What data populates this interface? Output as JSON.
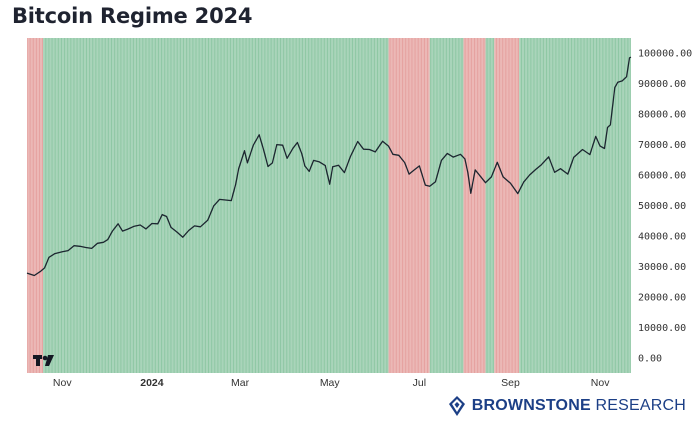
{
  "title": "Bitcoin Regime 2024",
  "brand": {
    "name_bold": "BROWNSTONE",
    "name_light": "RESEARCH",
    "logo_text": "TV"
  },
  "colors": {
    "bullish": "#8ec7a4",
    "bearish": "#e5a19f",
    "price_line": "#1c2630",
    "brand": "#1c3f86"
  },
  "chart_data": {
    "type": "line",
    "title": "Bitcoin Regime 2024",
    "xlabel": "",
    "ylabel": "",
    "x_range": [
      "2023-10-08",
      "2024-11-22"
    ],
    "ylim": [
      -5000,
      105000
    ],
    "yticks": [
      0,
      10000,
      20000,
      30000,
      40000,
      50000,
      60000,
      70000,
      80000,
      90000,
      100000
    ],
    "ytick_labels": [
      "0.00",
      "10000.00",
      "20000.00",
      "30000.00",
      "40000.00",
      "50000.00",
      "60000.00",
      "70000.00",
      "80000.00",
      "90000.00",
      "100000.00"
    ],
    "xticks": [
      {
        "date": "2023-11-01",
        "label": "Nov",
        "bold": false
      },
      {
        "date": "2024-01-01",
        "label": "2024",
        "bold": true
      },
      {
        "date": "2024-03-01",
        "label": "Mar",
        "bold": false
      },
      {
        "date": "2024-05-01",
        "label": "May",
        "bold": false
      },
      {
        "date": "2024-07-01",
        "label": "Jul",
        "bold": false
      },
      {
        "date": "2024-09-01",
        "label": "Sep",
        "bold": false
      },
      {
        "date": "2024-11-01",
        "label": "Nov",
        "bold": false
      }
    ],
    "regimes": [
      {
        "start": "2023-10-08",
        "end": "2023-10-19",
        "regime": "bearish"
      },
      {
        "start": "2023-10-19",
        "end": "2024-06-10",
        "regime": "bullish"
      },
      {
        "start": "2024-06-10",
        "end": "2024-07-08",
        "regime": "bearish"
      },
      {
        "start": "2024-07-08",
        "end": "2024-07-31",
        "regime": "bullish"
      },
      {
        "start": "2024-07-31",
        "end": "2024-08-15",
        "regime": "bearish"
      },
      {
        "start": "2024-08-15",
        "end": "2024-08-21",
        "regime": "bullish"
      },
      {
        "start": "2024-08-21",
        "end": "2024-09-07",
        "regime": "bearish"
      },
      {
        "start": "2024-09-07",
        "end": "2024-11-22",
        "regime": "bullish"
      }
    ],
    "series": [
      {
        "values": [
          [
            "2023-10-08",
            27800
          ],
          [
            "2023-10-13",
            27000
          ],
          [
            "2023-10-17",
            28300
          ],
          [
            "2023-10-20",
            29500
          ],
          [
            "2023-10-23",
            33000
          ],
          [
            "2023-10-27",
            34200
          ],
          [
            "2023-11-01",
            34800
          ],
          [
            "2023-11-05",
            35200
          ],
          [
            "2023-11-09",
            36800
          ],
          [
            "2023-11-13",
            36600
          ],
          [
            "2023-11-17",
            36200
          ],
          [
            "2023-11-21",
            35900
          ],
          [
            "2023-11-25",
            37600
          ],
          [
            "2023-11-29",
            37900
          ],
          [
            "2023-12-02",
            38800
          ],
          [
            "2023-12-05",
            41500
          ],
          [
            "2023-12-09",
            44000
          ],
          [
            "2023-12-12",
            41600
          ],
          [
            "2023-12-16",
            42300
          ],
          [
            "2023-12-20",
            43200
          ],
          [
            "2023-12-24",
            43600
          ],
          [
            "2023-12-28",
            42300
          ],
          [
            "2024-01-01",
            44100
          ],
          [
            "2024-01-05",
            44000
          ],
          [
            "2024-01-08",
            47000
          ],
          [
            "2024-01-11",
            46400
          ],
          [
            "2024-01-14",
            42800
          ],
          [
            "2024-01-18",
            41300
          ],
          [
            "2024-01-22",
            39600
          ],
          [
            "2024-01-26",
            41800
          ],
          [
            "2024-01-30",
            43300
          ],
          [
            "2024-02-03",
            43000
          ],
          [
            "2024-02-08",
            45200
          ],
          [
            "2024-02-12",
            49800
          ],
          [
            "2024-02-16",
            52000
          ],
          [
            "2024-02-20",
            51800
          ],
          [
            "2024-02-24",
            51600
          ],
          [
            "2024-02-27",
            57000
          ],
          [
            "2024-02-29",
            62000
          ],
          [
            "2024-03-04",
            68000
          ],
          [
            "2024-03-06",
            64000
          ],
          [
            "2024-03-10",
            69800
          ],
          [
            "2024-03-14",
            73200
          ],
          [
            "2024-03-17",
            68300
          ],
          [
            "2024-03-20",
            62800
          ],
          [
            "2024-03-23",
            64000
          ],
          [
            "2024-03-26",
            70000
          ],
          [
            "2024-03-30",
            69800
          ],
          [
            "2024-04-02",
            65500
          ],
          [
            "2024-04-06",
            68800
          ],
          [
            "2024-04-09",
            70700
          ],
          [
            "2024-04-12",
            67000
          ],
          [
            "2024-04-14",
            63000
          ],
          [
            "2024-04-17",
            61200
          ],
          [
            "2024-04-20",
            64800
          ],
          [
            "2024-04-24",
            64300
          ],
          [
            "2024-04-28",
            63100
          ],
          [
            "2024-05-01",
            57000
          ],
          [
            "2024-05-03",
            62700
          ],
          [
            "2024-05-07",
            63200
          ],
          [
            "2024-05-11",
            60800
          ],
          [
            "2024-05-15",
            66000
          ],
          [
            "2024-05-20",
            71000
          ],
          [
            "2024-05-24",
            68500
          ],
          [
            "2024-05-28",
            68400
          ],
          [
            "2024-06-01",
            67600
          ],
          [
            "2024-06-06",
            71100
          ],
          [
            "2024-06-10",
            69500
          ],
          [
            "2024-06-13",
            66800
          ],
          [
            "2024-06-17",
            66500
          ],
          [
            "2024-06-21",
            64100
          ],
          [
            "2024-06-24",
            60300
          ],
          [
            "2024-06-27",
            61500
          ],
          [
            "2024-07-01",
            63000
          ],
          [
            "2024-07-05",
            56700
          ],
          [
            "2024-07-08",
            56300
          ],
          [
            "2024-07-12",
            57800
          ],
          [
            "2024-07-16",
            64800
          ],
          [
            "2024-07-20",
            67100
          ],
          [
            "2024-07-24",
            65900
          ],
          [
            "2024-07-29",
            66800
          ],
          [
            "2024-08-01",
            65300
          ],
          [
            "2024-08-03",
            60700
          ],
          [
            "2024-08-05",
            54000
          ],
          [
            "2024-08-08",
            61700
          ],
          [
            "2024-08-12",
            59300
          ],
          [
            "2024-08-15",
            57500
          ],
          [
            "2024-08-19",
            59400
          ],
          [
            "2024-08-23",
            64200
          ],
          [
            "2024-08-27",
            59400
          ],
          [
            "2024-09-01",
            57300
          ],
          [
            "2024-09-06",
            53900
          ],
          [
            "2024-09-10",
            57700
          ],
          [
            "2024-09-14",
            60000
          ],
          [
            "2024-09-18",
            61800
          ],
          [
            "2024-09-22",
            63400
          ],
          [
            "2024-09-27",
            66000
          ],
          [
            "2024-10-01",
            60900
          ],
          [
            "2024-10-05",
            62100
          ],
          [
            "2024-10-10",
            60300
          ],
          [
            "2024-10-14",
            65800
          ],
          [
            "2024-10-20",
            68400
          ],
          [
            "2024-10-25",
            66700
          ],
          [
            "2024-10-29",
            72700
          ],
          [
            "2024-11-01",
            69500
          ],
          [
            "2024-11-04",
            68700
          ],
          [
            "2024-11-06",
            75600
          ],
          [
            "2024-11-08",
            76500
          ],
          [
            "2024-11-11",
            88700
          ],
          [
            "2024-11-13",
            90500
          ],
          [
            "2024-11-16",
            90900
          ],
          [
            "2024-11-19",
            92300
          ],
          [
            "2024-11-21",
            98500
          ],
          [
            "2024-11-22",
            98700
          ]
        ]
      }
    ]
  }
}
